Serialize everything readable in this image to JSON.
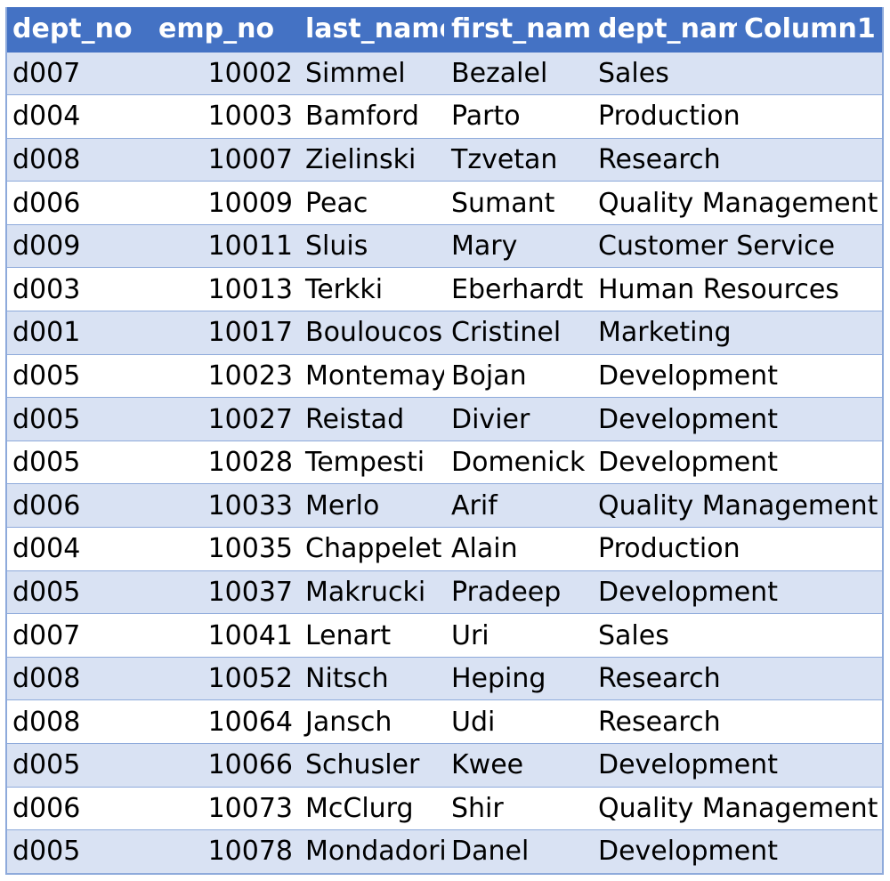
{
  "table": {
    "columns": [
      "dept_no",
      "emp_no",
      "last_name",
      "first_name",
      "dept_nam",
      "Column1"
    ],
    "rows": [
      [
        "d007",
        "10002",
        "Simmel",
        "Bezalel",
        "Sales",
        ""
      ],
      [
        "d004",
        "10003",
        "Bamford",
        "Parto",
        "Production",
        ""
      ],
      [
        "d008",
        "10007",
        "Zielinski",
        "Tzvetan",
        "Research",
        ""
      ],
      [
        "d006",
        "10009",
        "Peac",
        "Sumant",
        "Quality Management",
        ""
      ],
      [
        "d009",
        "10011",
        "Sluis",
        "Mary",
        "Customer Service",
        ""
      ],
      [
        "d003",
        "10013",
        "Terkki",
        "Eberhardt",
        "Human Resources",
        ""
      ],
      [
        "d001",
        "10017",
        "Bouloucos",
        "Cristinel",
        "Marketing",
        ""
      ],
      [
        "d005",
        "10023",
        "Montemayor",
        "Bojan",
        "Development",
        ""
      ],
      [
        "d005",
        "10027",
        "Reistad",
        "Divier",
        "Development",
        ""
      ],
      [
        "d005",
        "10028",
        "Tempesti",
        "Domenick",
        "Development",
        ""
      ],
      [
        "d006",
        "10033",
        "Merlo",
        "Arif",
        "Quality Management",
        ""
      ],
      [
        "d004",
        "10035",
        "Chappelet",
        "Alain",
        "Production",
        ""
      ],
      [
        "d005",
        "10037",
        "Makrucki",
        "Pradeep",
        "Development",
        ""
      ],
      [
        "d007",
        "10041",
        "Lenart",
        "Uri",
        "Sales",
        ""
      ],
      [
        "d008",
        "10052",
        "Nitsch",
        "Heping",
        "Research",
        ""
      ],
      [
        "d008",
        "10064",
        "Jansch",
        "Udi",
        "Research",
        ""
      ],
      [
        "d005",
        "10066",
        "Schusler",
        "Kwee",
        "Development",
        ""
      ],
      [
        "d006",
        "10073",
        "McClurg",
        "Shir",
        "Quality Management",
        ""
      ],
      [
        "d005",
        "10078",
        "Mondadori",
        "Danel",
        "Development",
        ""
      ]
    ]
  },
  "colors": {
    "header_bg": "#4472c4",
    "header_text": "#ffffff",
    "band_odd": "#d9e2f3",
    "band_even": "#ffffff",
    "border": "#8eaadb"
  }
}
